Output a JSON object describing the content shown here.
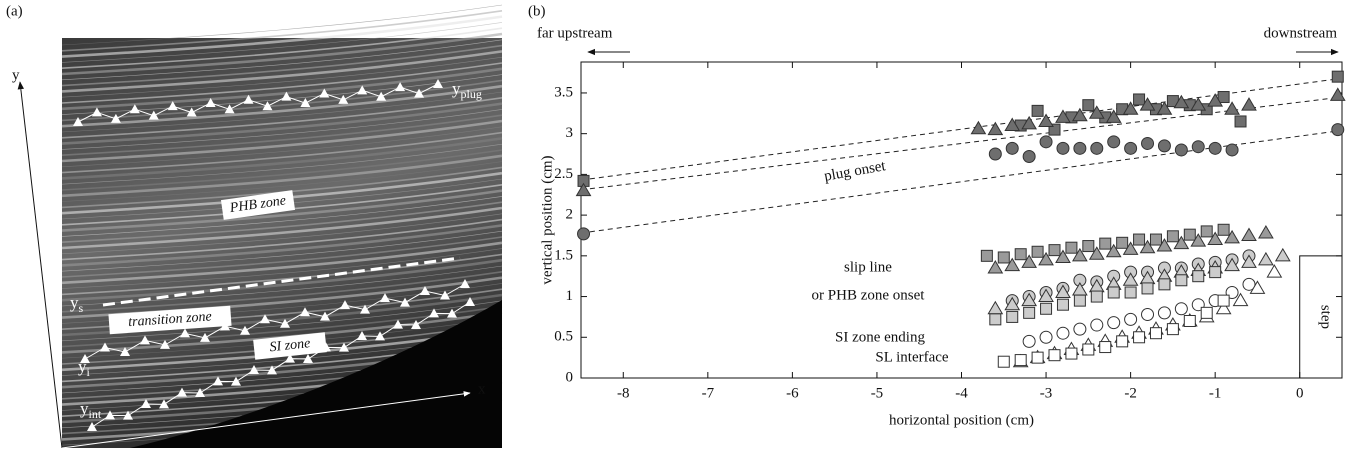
{
  "panel_a": {
    "label": "(a)",
    "axis_x": "x",
    "axis_y": "y",
    "curves": [
      {
        "base": "y",
        "sub": "plug"
      },
      {
        "base": "y",
        "sub": "s"
      },
      {
        "base": "y",
        "sub": "i"
      },
      {
        "base": "y",
        "sub": "int"
      }
    ],
    "zones": [
      "PHB zone",
      "transition zone",
      "SI zone"
    ]
  },
  "chart_data": {
    "type": "scatter",
    "panel_label": "(b)",
    "x_label": "horizontal position (cm)",
    "y_label": "vertical position (cm)",
    "xlim": [
      -8.5,
      0.5
    ],
    "ylim": [
      0,
      3.88
    ],
    "xticks": [
      -8,
      -7,
      -6,
      -5,
      -4,
      -3,
      -2,
      -1,
      0
    ],
    "yticks": [
      0,
      0.5,
      1,
      1.5,
      2,
      2.5,
      3,
      3.5
    ],
    "direction_labels": [
      "far upstream",
      "downstream"
    ],
    "annotations": [
      "plug onset",
      "slip line",
      "or PHB zone onset",
      "SI zone ending",
      "SL interface"
    ],
    "step": {
      "label": "step",
      "xlim": [
        0,
        0.5
      ],
      "height": 1.5
    },
    "series": [
      {
        "marker": "square",
        "color": "#6e6e6e",
        "x": [
          -8.47,
          -3.3,
          -3.1,
          -2.9,
          -2.7,
          -2.5,
          -2.3,
          -2.1,
          -1.9,
          -1.7,
          -1.5,
          -1.3,
          -1.1,
          -0.9,
          -0.7,
          0.45
        ],
        "values": [
          2.42,
          3.1,
          3.28,
          3.05,
          3.2,
          3.35,
          3.2,
          3.3,
          3.42,
          3.3,
          3.4,
          3.35,
          3.3,
          3.45,
          3.15,
          3.7
        ]
      },
      {
        "marker": "triangle",
        "color": "#6e6e6e",
        "x": [
          -8.47,
          -3.8,
          -3.6,
          -3.4,
          -3.2,
          -3.0,
          -2.8,
          -2.6,
          -2.4,
          -2.2,
          -2.0,
          -1.8,
          -1.6,
          -1.4,
          -1.2,
          -1.0,
          -0.8,
          -0.6,
          0.45
        ],
        "values": [
          2.3,
          3.06,
          3.05,
          3.1,
          3.12,
          3.15,
          3.2,
          3.22,
          3.25,
          3.2,
          3.3,
          3.35,
          3.3,
          3.38,
          3.35,
          3.4,
          3.3,
          3.35,
          3.47
        ]
      },
      {
        "marker": "circle",
        "color": "#6e6e6e",
        "x": [
          -8.47,
          -3.6,
          -3.4,
          -3.2,
          -3.0,
          -2.8,
          -2.6,
          -2.4,
          -2.2,
          -2.0,
          -1.8,
          -1.6,
          -1.4,
          -1.2,
          -1.0,
          -0.8,
          0.45
        ],
        "values": [
          1.77,
          2.75,
          2.82,
          2.72,
          2.9,
          2.82,
          2.82,
          2.82,
          2.9,
          2.82,
          2.88,
          2.85,
          2.8,
          2.84,
          2.82,
          2.8,
          3.05
        ]
      },
      {
        "marker": "square",
        "color": "#9a9a9a",
        "x": [
          -3.7,
          -3.5,
          -3.3,
          -3.1,
          -2.9,
          -2.7,
          -2.5,
          -2.3,
          -2.1,
          -1.9,
          -1.7,
          -1.5,
          -1.3,
          -1.1,
          -0.9
        ],
        "values": [
          1.5,
          1.48,
          1.52,
          1.55,
          1.57,
          1.6,
          1.62,
          1.65,
          1.66,
          1.7,
          1.7,
          1.74,
          1.76,
          1.8,
          1.82
        ]
      },
      {
        "marker": "triangle",
        "color": "#9a9a9a",
        "x": [
          -3.6,
          -3.4,
          -3.2,
          -3.0,
          -2.8,
          -2.6,
          -2.4,
          -2.2,
          -2.0,
          -1.8,
          -1.6,
          -1.4,
          -1.2,
          -1.0,
          -0.8,
          -0.6,
          -0.4
        ],
        "values": [
          1.35,
          1.38,
          1.42,
          1.45,
          1.48,
          1.5,
          1.52,
          1.55,
          1.58,
          1.6,
          1.62,
          1.65,
          1.68,
          1.7,
          1.72,
          1.75,
          1.78
        ]
      },
      {
        "marker": "circle",
        "color": "#cccccc",
        "x": [
          -3.4,
          -3.2,
          -3.0,
          -2.8,
          -2.6,
          -2.4,
          -2.2,
          -2.0,
          -1.8,
          -1.6,
          -1.4,
          -1.2,
          -1.0,
          -0.8,
          -0.6
        ],
        "values": [
          0.95,
          1.0,
          1.05,
          1.1,
          1.2,
          1.18,
          1.25,
          1.3,
          1.3,
          1.35,
          1.35,
          1.4,
          1.42,
          1.45,
          1.5
        ]
      },
      {
        "marker": "triangle",
        "color": "#cccccc",
        "x": [
          -3.6,
          -3.4,
          -3.2,
          -3.0,
          -2.8,
          -2.6,
          -2.4,
          -2.2,
          -2.0,
          -1.8,
          -1.6,
          -1.4,
          -1.2,
          -1.0,
          -0.8,
          -0.6,
          -0.4,
          -0.2
        ],
        "values": [
          0.85,
          0.9,
          0.95,
          1.0,
          1.05,
          1.08,
          1.12,
          1.15,
          1.2,
          1.22,
          1.25,
          1.3,
          1.32,
          1.35,
          1.38,
          1.42,
          1.45,
          1.5
        ]
      },
      {
        "marker": "square",
        "color": "#cccccc",
        "x": [
          -3.6,
          -3.4,
          -3.2,
          -3.0,
          -2.8,
          -2.6,
          -2.4,
          -2.2,
          -2.0,
          -1.8,
          -1.6,
          -1.4,
          -1.2,
          -1.0
        ],
        "values": [
          0.72,
          0.75,
          0.8,
          0.85,
          0.9,
          0.95,
          1.0,
          1.05,
          1.05,
          1.1,
          1.15,
          1.2,
          1.25,
          1.3
        ]
      },
      {
        "marker": "circle",
        "color": "#ffffff",
        "x": [
          -3.2,
          -3.0,
          -2.8,
          -2.6,
          -2.4,
          -2.2,
          -2.0,
          -1.8,
          -1.6,
          -1.4,
          -1.2,
          -1.0,
          -0.8,
          -0.6
        ],
        "values": [
          0.45,
          0.5,
          0.55,
          0.6,
          0.65,
          0.68,
          0.72,
          0.78,
          0.8,
          0.85,
          0.9,
          0.95,
          1.05,
          1.15
        ]
      },
      {
        "marker": "triangle",
        "color": "#ffffff",
        "x": [
          -3.3,
          -3.1,
          -2.9,
          -2.7,
          -2.5,
          -2.3,
          -2.1,
          -1.9,
          -1.7,
          -1.5,
          -1.3,
          -1.1,
          -0.9,
          -0.7,
          -0.5,
          -0.3
        ],
        "values": [
          0.2,
          0.25,
          0.3,
          0.35,
          0.4,
          0.45,
          0.5,
          0.55,
          0.6,
          0.65,
          0.7,
          0.75,
          0.85,
          0.95,
          1.1,
          1.3
        ]
      },
      {
        "marker": "square",
        "color": "#ffffff",
        "x": [
          -3.5,
          -3.3,
          -3.1,
          -2.9,
          -2.7,
          -2.5,
          -2.3,
          -2.1,
          -1.9,
          -1.7,
          -1.5,
          -1.3,
          -1.1,
          -0.9
        ],
        "values": [
          0.2,
          0.22,
          0.25,
          0.28,
          0.3,
          0.35,
          0.38,
          0.45,
          0.5,
          0.55,
          0.6,
          0.7,
          0.8,
          0.95
        ]
      }
    ],
    "fits": [
      {
        "x": [
          -8.5,
          0.5
        ],
        "values": [
          2.43,
          3.68
        ]
      },
      {
        "x": [
          -8.5,
          0.5
        ],
        "values": [
          2.31,
          3.45
        ]
      },
      {
        "x": [
          -8.5,
          0.5
        ],
        "values": [
          1.78,
          3.04
        ]
      }
    ]
  }
}
